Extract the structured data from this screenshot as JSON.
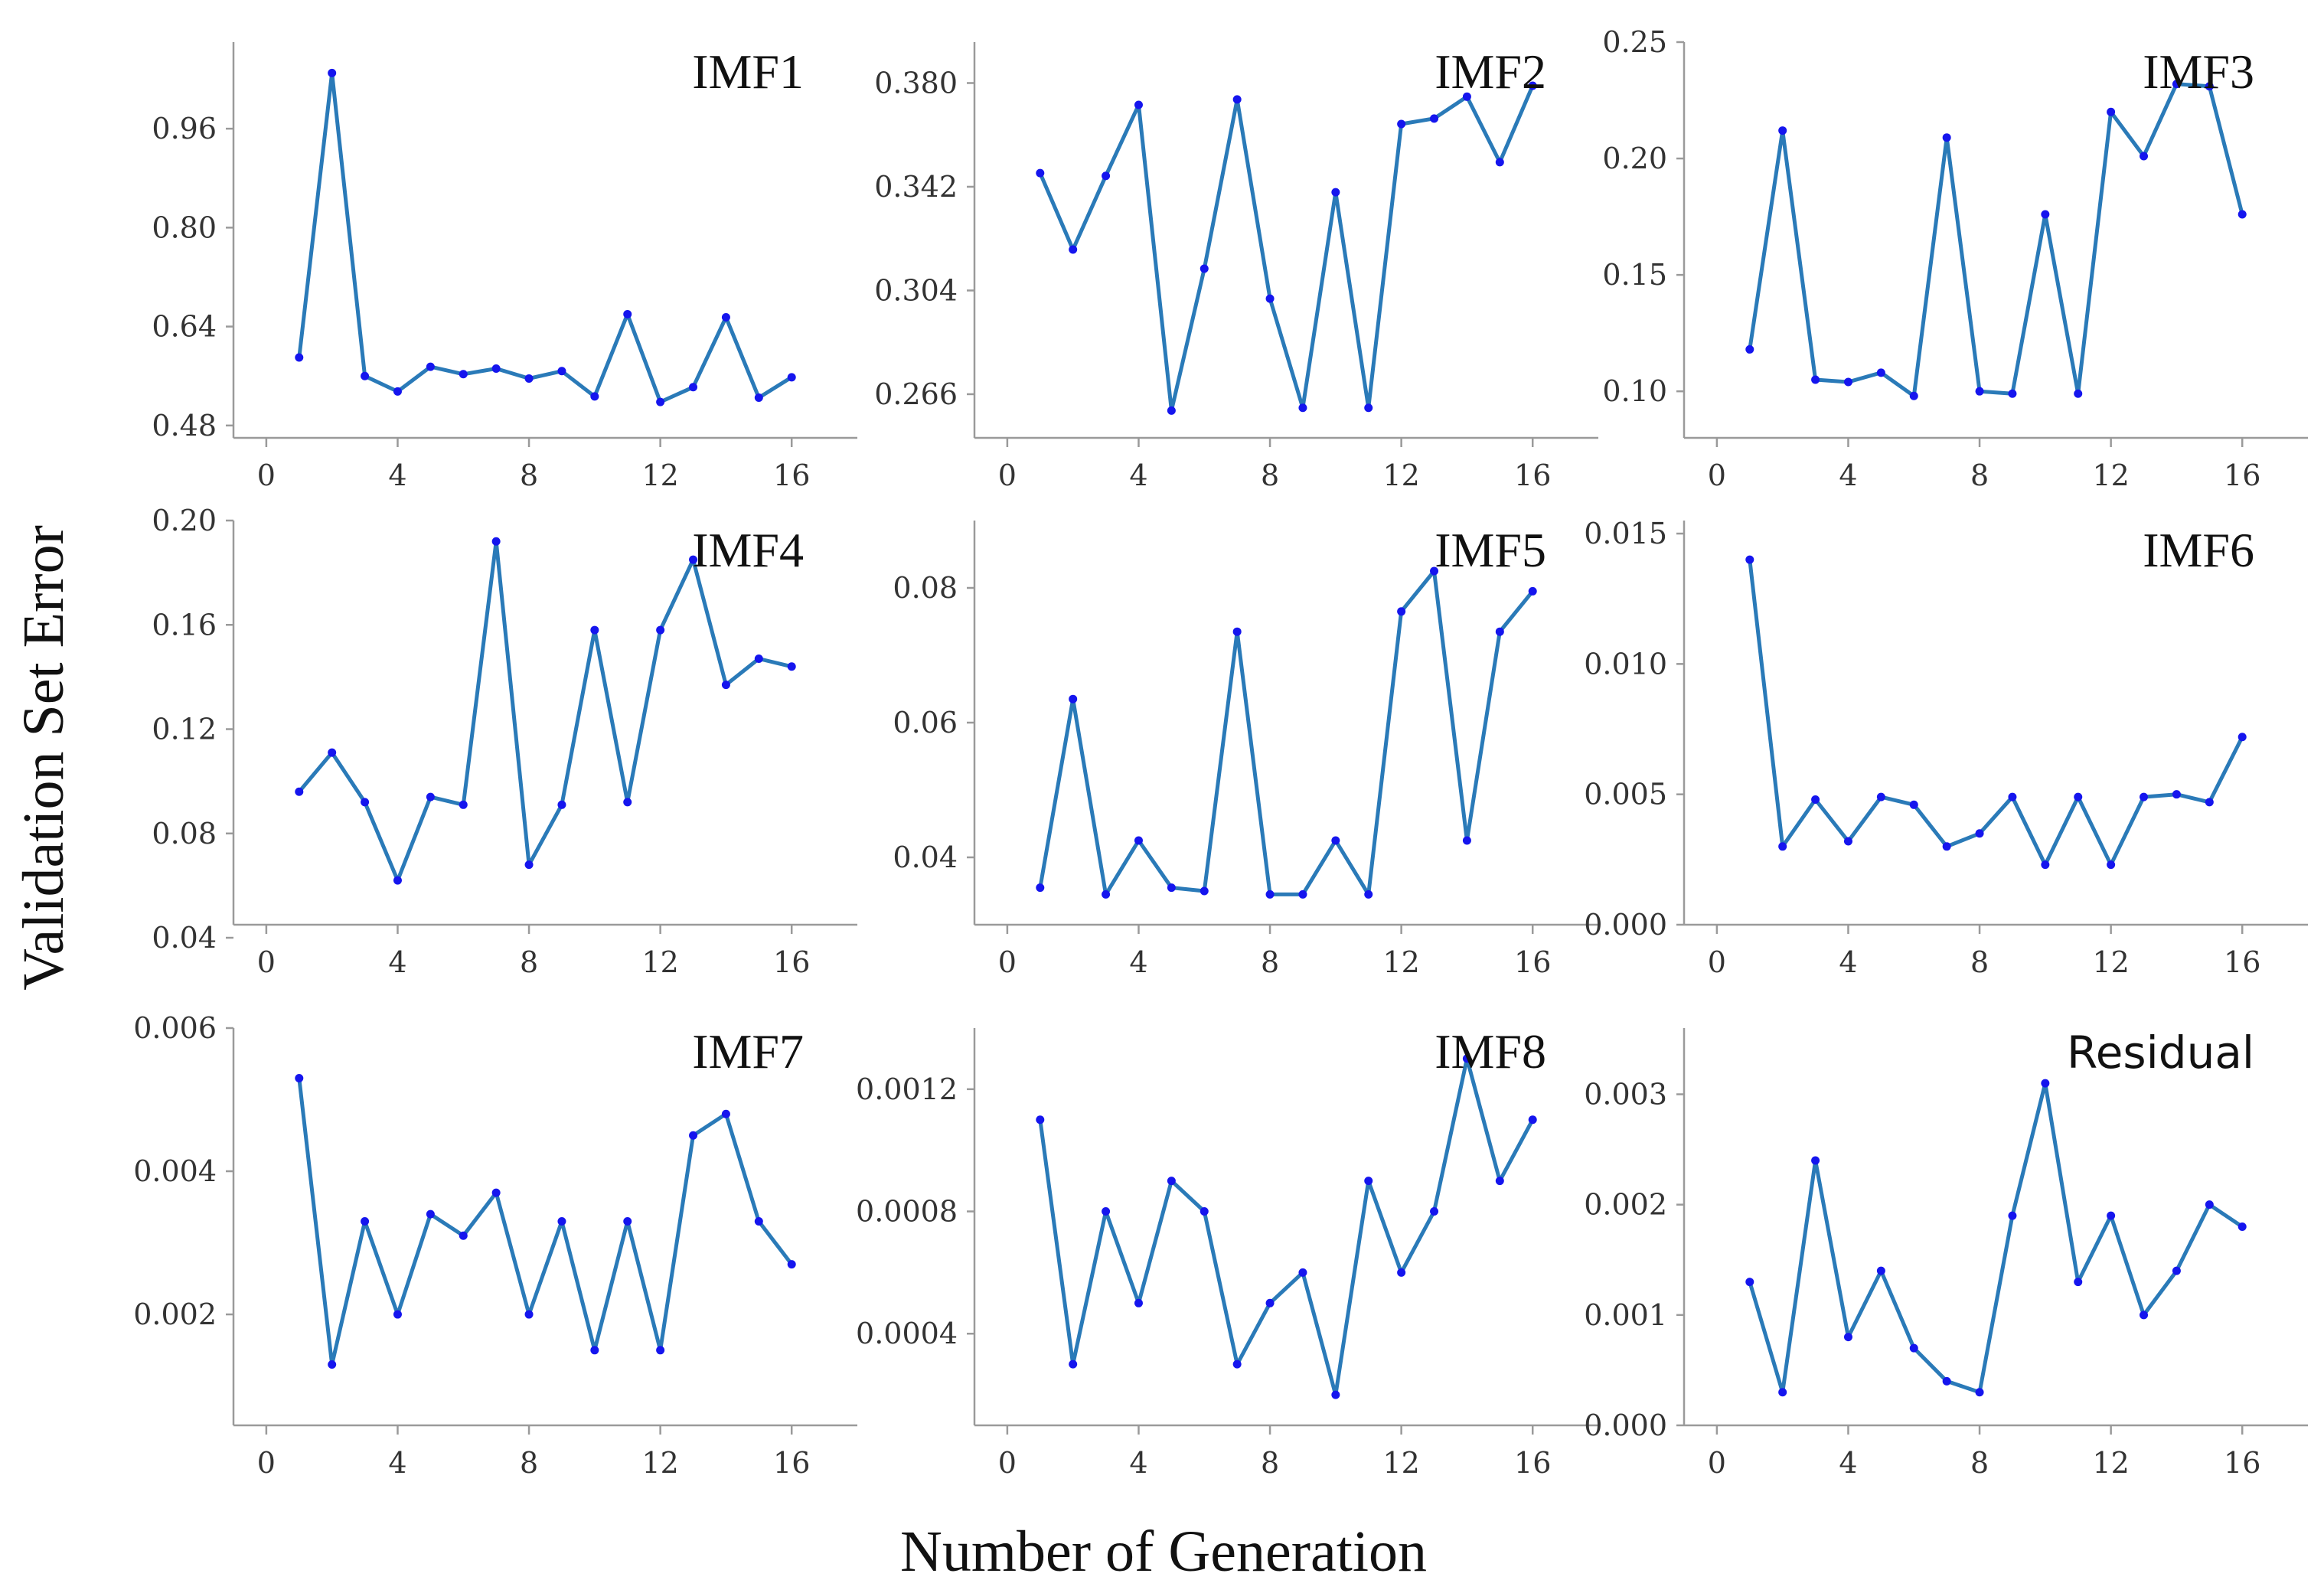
{
  "figure": {
    "ylabel": "Validation Set Error",
    "xlabel": "Number of Generation"
  },
  "colors": {
    "line": "#2a7ab8",
    "marker": "#1515ee",
    "axis": "#9a9a9a"
  },
  "chart_data": [
    {
      "type": "line",
      "title": "IMF1",
      "x": [
        1,
        2,
        3,
        4,
        5,
        6,
        7,
        8,
        9,
        10,
        11,
        12,
        13,
        14,
        15,
        16
      ],
      "values": [
        0.59,
        1.05,
        0.56,
        0.535,
        0.575,
        0.563,
        0.572,
        0.556,
        0.568,
        0.527,
        0.66,
        0.518,
        0.542,
        0.655,
        0.525,
        0.558
      ],
      "xlim": [
        -1,
        18
      ],
      "ylim": [
        0.46,
        1.1
      ],
      "xticks": [
        0,
        4,
        8,
        12,
        16
      ],
      "xtick_labels": [
        "0",
        "4",
        "8",
        "12",
        "16"
      ],
      "yticks": [
        0.48,
        0.64,
        0.8,
        0.96
      ],
      "ytick_labels": [
        "0.48",
        "0.64",
        "0.80",
        "0.96"
      ]
    },
    {
      "type": "line",
      "title": "IMF2",
      "x": [
        1,
        2,
        3,
        4,
        5,
        6,
        7,
        8,
        9,
        10,
        11,
        12,
        13,
        14,
        15,
        16
      ],
      "values": [
        0.347,
        0.319,
        0.346,
        0.372,
        0.26,
        0.312,
        0.374,
        0.301,
        0.261,
        0.34,
        0.261,
        0.365,
        0.367,
        0.375,
        0.351,
        0.379
      ],
      "xlim": [
        -1,
        18
      ],
      "ylim": [
        0.25,
        0.395
      ],
      "xticks": [
        0,
        4,
        8,
        12,
        16
      ],
      "xtick_labels": [
        "0",
        "4",
        "8",
        "12",
        "16"
      ],
      "yticks": [
        0.266,
        0.304,
        0.342,
        0.38
      ],
      "ytick_labels": [
        "0.266",
        "0.304",
        "0.342",
        "0.380"
      ]
    },
    {
      "type": "line",
      "title": "IMF3",
      "x": [
        1,
        2,
        3,
        4,
        5,
        6,
        7,
        8,
        9,
        10,
        11,
        12,
        13,
        14,
        15,
        16
      ],
      "values": [
        0.118,
        0.212,
        0.105,
        0.104,
        0.108,
        0.098,
        0.209,
        0.1,
        0.099,
        0.176,
        0.099,
        0.22,
        0.201,
        0.232,
        0.231,
        0.176
      ],
      "xlim": [
        -1,
        18
      ],
      "ylim": [
        0.08,
        0.25
      ],
      "xticks": [
        0,
        4,
        8,
        12,
        16
      ],
      "xtick_labels": [
        "0",
        "4",
        "8",
        "12",
        "16"
      ],
      "yticks": [
        0.1,
        0.15,
        0.2,
        0.25
      ],
      "ytick_labels": [
        "0.10",
        "0.15",
        "0.20",
        "0.25"
      ]
    },
    {
      "type": "line",
      "title": "IMF4",
      "x": [
        1,
        2,
        3,
        4,
        5,
        6,
        7,
        8,
        9,
        10,
        11,
        12,
        13,
        14,
        15,
        16
      ],
      "values": [
        0.096,
        0.111,
        0.092,
        0.062,
        0.094,
        0.091,
        0.192,
        0.068,
        0.091,
        0.158,
        0.092,
        0.158,
        0.185,
        0.137,
        0.147,
        0.144
      ],
      "xlim": [
        -1,
        18
      ],
      "ylim": [
        0.045,
        0.2
      ],
      "xticks": [
        0,
        4,
        8,
        12,
        16
      ],
      "xtick_labels": [
        "0",
        "4",
        "8",
        "12",
        "16"
      ],
      "yticks": [
        0.04,
        0.08,
        0.12,
        0.16,
        0.2
      ],
      "ytick_labels": [
        "0.04",
        "0.08",
        "0.12",
        "0.16",
        "0.20"
      ]
    },
    {
      "type": "line",
      "title": "IMF5",
      "x": [
        1,
        2,
        3,
        4,
        5,
        6,
        7,
        8,
        9,
        10,
        11,
        12,
        13,
        14,
        15,
        16
      ],
      "values": [
        0.0355,
        0.0635,
        0.0345,
        0.0425,
        0.0355,
        0.035,
        0.0735,
        0.0345,
        0.0345,
        0.0425,
        0.0345,
        0.0765,
        0.0825,
        0.0425,
        0.0735,
        0.0795
      ],
      "xlim": [
        -1,
        18
      ],
      "ylim": [
        0.03,
        0.09
      ],
      "xticks": [
        0,
        4,
        8,
        12,
        16
      ],
      "xtick_labels": [
        "0",
        "4",
        "8",
        "12",
        "16"
      ],
      "yticks": [
        0.04,
        0.06,
        0.08
      ],
      "ytick_labels": [
        "0.04",
        "0.06",
        "0.08"
      ]
    },
    {
      "type": "line",
      "title": "IMF6",
      "x": [
        1,
        2,
        3,
        4,
        5,
        6,
        7,
        8,
        9,
        10,
        11,
        12,
        13,
        14,
        15,
        16
      ],
      "values": [
        0.014,
        0.003,
        0.0048,
        0.0032,
        0.0049,
        0.0046,
        0.003,
        0.0035,
        0.0049,
        0.0023,
        0.0049,
        0.0023,
        0.0049,
        0.005,
        0.0047,
        0.0072
      ],
      "xlim": [
        -1,
        18
      ],
      "ylim": [
        0.0,
        0.0155
      ],
      "xticks": [
        0,
        4,
        8,
        12,
        16
      ],
      "xtick_labels": [
        "0",
        "4",
        "8",
        "12",
        "16"
      ],
      "yticks": [
        0.0,
        0.005,
        0.01,
        0.015
      ],
      "ytick_labels": [
        "0.000",
        "0.005",
        "0.010",
        "0.015"
      ]
    },
    {
      "type": "line",
      "title": "IMF7",
      "x": [
        1,
        2,
        3,
        4,
        5,
        6,
        7,
        8,
        9,
        10,
        11,
        12,
        13,
        14,
        15,
        16
      ],
      "values": [
        0.0053,
        0.0013,
        0.0033,
        0.002,
        0.0034,
        0.0031,
        0.0037,
        0.002,
        0.0033,
        0.0015,
        0.0033,
        0.0015,
        0.0045,
        0.0048,
        0.0033,
        0.0027
      ],
      "xlim": [
        -1,
        18
      ],
      "ylim": [
        0.00045,
        0.006
      ],
      "xticks": [
        0,
        4,
        8,
        12,
        16
      ],
      "xtick_labels": [
        "0",
        "4",
        "8",
        "12",
        "16"
      ],
      "yticks": [
        0.002,
        0.004,
        0.006
      ],
      "ytick_labels": [
        "0.002",
        "0.004",
        "0.006"
      ]
    },
    {
      "type": "line",
      "title": "IMF8",
      "x": [
        1,
        2,
        3,
        4,
        5,
        6,
        7,
        8,
        9,
        10,
        11,
        12,
        13,
        14,
        15,
        16
      ],
      "values": [
        0.0011,
        0.0003,
        0.0008,
        0.0005,
        0.0009,
        0.0008,
        0.0003,
        0.0005,
        0.0006,
        0.0002,
        0.0009,
        0.0006,
        0.0008,
        0.0013,
        0.0009,
        0.0011
      ],
      "xlim": [
        -1,
        18
      ],
      "ylim": [
        0.0001,
        0.0014
      ],
      "xticks": [
        0,
        4,
        8,
        12,
        16
      ],
      "xtick_labels": [
        "0",
        "4",
        "8",
        "12",
        "16"
      ],
      "yticks": [
        0.0004,
        0.0008,
        0.0012
      ],
      "ytick_labels": [
        "0.0004",
        "0.0008",
        "0.0012"
      ]
    },
    {
      "type": "line",
      "title": "Residual",
      "x": [
        1,
        2,
        3,
        4,
        5,
        6,
        7,
        8,
        9,
        10,
        11,
        12,
        13,
        14,
        15,
        16
      ],
      "values": [
        0.0013,
        0.0003,
        0.0024,
        0.0008,
        0.0014,
        0.0007,
        0.0004,
        0.0003,
        0.0019,
        0.0031,
        0.0013,
        0.0019,
        0.001,
        0.0014,
        0.002,
        0.0018
      ],
      "xlim": [
        -1,
        18
      ],
      "ylim": [
        0.0,
        0.0036
      ],
      "xticks": [
        0,
        4,
        8,
        12,
        16
      ],
      "xtick_labels": [
        "0",
        "4",
        "8",
        "12",
        "16"
      ],
      "yticks": [
        0.0,
        0.001,
        0.002,
        0.003
      ],
      "ytick_labels": [
        "0.000",
        "0.001",
        "0.002",
        "0.003"
      ]
    }
  ]
}
